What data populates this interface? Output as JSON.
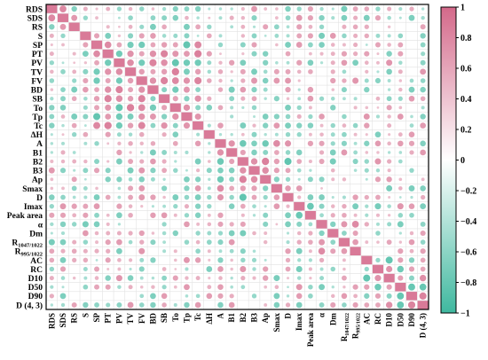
{
  "chart_data": {
    "type": "heatmap",
    "style": "correlation-circle-matrix",
    "variables": [
      "RDS",
      "SDS",
      "RS",
      "S",
      "SP",
      "PT",
      "PV",
      "TV",
      "FV",
      "BD",
      "SB",
      "To",
      "Tp",
      "Tc",
      "ΔH",
      "A",
      "B1",
      "B2",
      "B3",
      "Ap",
      "Smax",
      "D",
      "Imax",
      "Peak area",
      "α",
      "Dm",
      "R1047/1022",
      "R995/1022",
      "AC",
      "RC",
      "D10",
      "D50",
      "D90",
      "D (4, 3)"
    ],
    "label_parts": {
      "R1047/1022": {
        "base": "R",
        "sub": "1047/1022"
      },
      "R995/1022": {
        "base": "R",
        "sub": "995/1022"
      }
    },
    "groups": [
      {
        "name": "g1",
        "members": [
          0,
          1,
          2
        ]
      },
      {
        "name": "g2",
        "members": [
          4,
          5,
          6,
          7,
          8,
          9,
          10,
          11,
          12,
          13
        ]
      },
      {
        "name": "g3",
        "members": [
          15,
          16,
          17,
          18,
          19,
          20,
          21
        ]
      },
      {
        "name": "g4",
        "members": [
          22,
          23
        ]
      },
      {
        "name": "g5",
        "members": [
          24,
          25,
          26,
          27
        ]
      },
      {
        "name": "g6",
        "members": [
          28,
          29,
          30,
          31,
          32,
          33
        ]
      },
      {
        "name": "g7",
        "members": [
          3,
          14
        ]
      }
    ],
    "colorbar": {
      "min": -1,
      "max": 1,
      "ticks": [
        "1",
        "0.8",
        "0.6",
        "0.4",
        "0.2",
        "0",
        "−0.2",
        "−0.4",
        "−0.6",
        "−0.8",
        "−1"
      ],
      "tick_values": [
        1,
        0.8,
        0.6,
        0.4,
        0.2,
        0,
        -0.2,
        -0.4,
        -0.6,
        -0.8,
        -1
      ],
      "positive_color": "#d4698a",
      "negative_color": "#3fb89f",
      "zero_color": "#ffffff"
    },
    "grid": true,
    "legend_placement": "right"
  }
}
